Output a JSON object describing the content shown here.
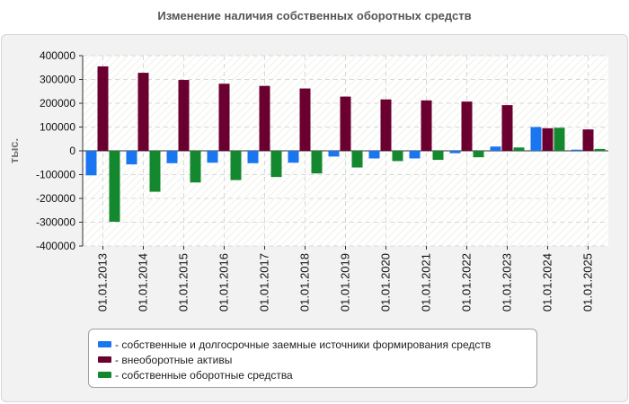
{
  "chart_data": {
    "type": "bar",
    "title": "Изменение наличия собственных оборотных средств",
    "ylabel": "тыс.",
    "xlabel": "",
    "ylim": [
      -400000,
      400000
    ],
    "yticks": [
      400000,
      300000,
      200000,
      100000,
      0,
      -100000,
      -200000,
      -300000,
      -400000
    ],
    "ytick_labels": [
      "400000",
      "300000",
      "200000",
      "100000",
      "0",
      "-100000",
      "-200000",
      "-300000",
      "-400000"
    ],
    "categories": [
      "01.01.2013",
      "01.01.2014",
      "01.01.2015",
      "01.01.2016",
      "01.01.2017",
      "01.01.2018",
      "01.01.2019",
      "01.01.2020",
      "01.01.2021",
      "01.01.2022",
      "01.01.2023",
      "01.01.2024",
      "01.01.2025"
    ],
    "grid": true,
    "legend_position": "bottom",
    "series": [
      {
        "name": "- собственные и долгосрочные заемные источники формирования средств",
        "color": "#1a75f0",
        "values": [
          -103000,
          -57000,
          -52000,
          -50000,
          -52000,
          -50000,
          -24000,
          -32000,
          -32000,
          -10000,
          18000,
          100000,
          5000
        ]
      },
      {
        "name": "- внеоборотные активы",
        "color": "#6b0030",
        "values": [
          355000,
          328000,
          298000,
          282000,
          273000,
          262000,
          228000,
          216000,
          212000,
          207000,
          192000,
          95000,
          90000
        ]
      },
      {
        "name": "- собственные оборотные средства",
        "color": "#13882e",
        "values": [
          -298000,
          -172000,
          -133000,
          -123000,
          -110000,
          -95000,
          -70000,
          -43000,
          -38000,
          -27000,
          14000,
          97000,
          8000
        ]
      }
    ]
  }
}
